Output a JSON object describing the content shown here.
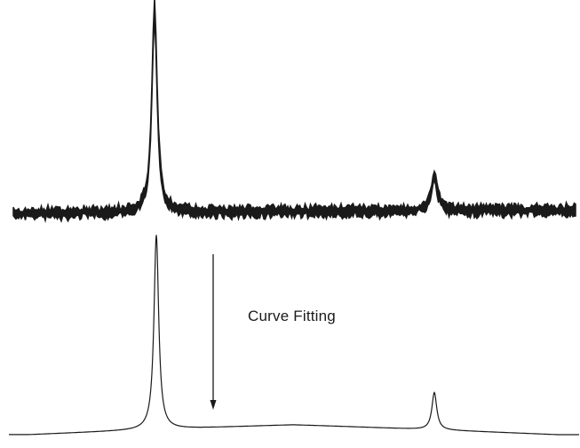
{
  "annotation": {
    "text": "Curve Fitting"
  },
  "colors": {
    "raw_trace": "#1a1a1a",
    "fitted_curve": "#1a1a1a",
    "arrow": "#1a1a1a",
    "background": "#ffffff"
  }
}
